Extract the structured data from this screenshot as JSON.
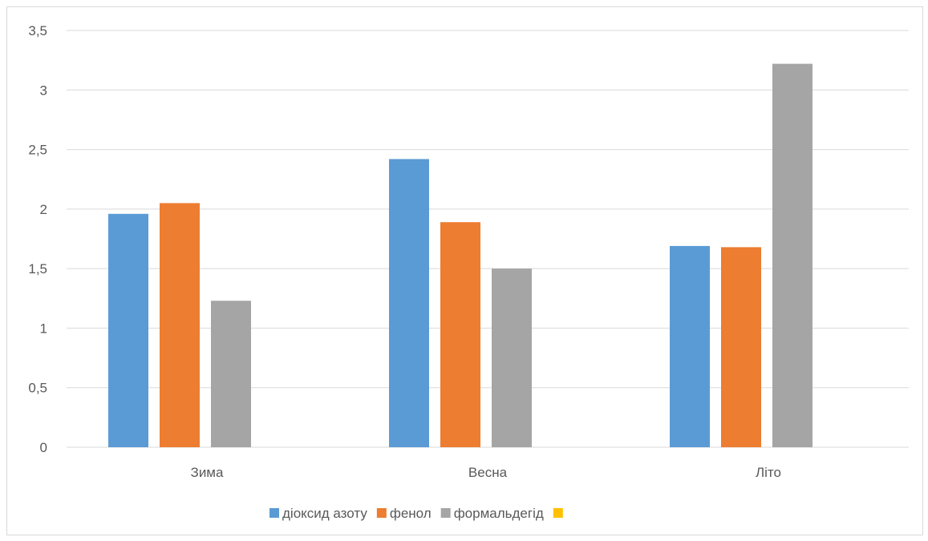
{
  "chart_data": {
    "type": "bar",
    "title": "",
    "xlabel": "",
    "ylabel": "",
    "categories": [
      "Зима",
      "Весна",
      "Літо"
    ],
    "series": [
      {
        "name": "діоксид азоту",
        "color": "#5b9bd5",
        "values": [
          1.96,
          2.42,
          1.69
        ]
      },
      {
        "name": "фенол",
        "color": "#ed7d31",
        "values": [
          2.05,
          1.89,
          1.68
        ]
      },
      {
        "name": "формальдегід",
        "color": "#a5a5a5",
        "values": [
          1.23,
          1.5,
          3.22
        ]
      },
      {
        "name": "",
        "color": "#ffc000",
        "values": [
          0,
          0,
          0
        ]
      }
    ],
    "ylim": [
      0,
      3.5
    ],
    "yticks": [
      "0",
      "0,5",
      "1",
      "1,5",
      "2",
      "2,5",
      "3",
      "3,5"
    ],
    "grid": true,
    "legend_position": "bottom"
  }
}
